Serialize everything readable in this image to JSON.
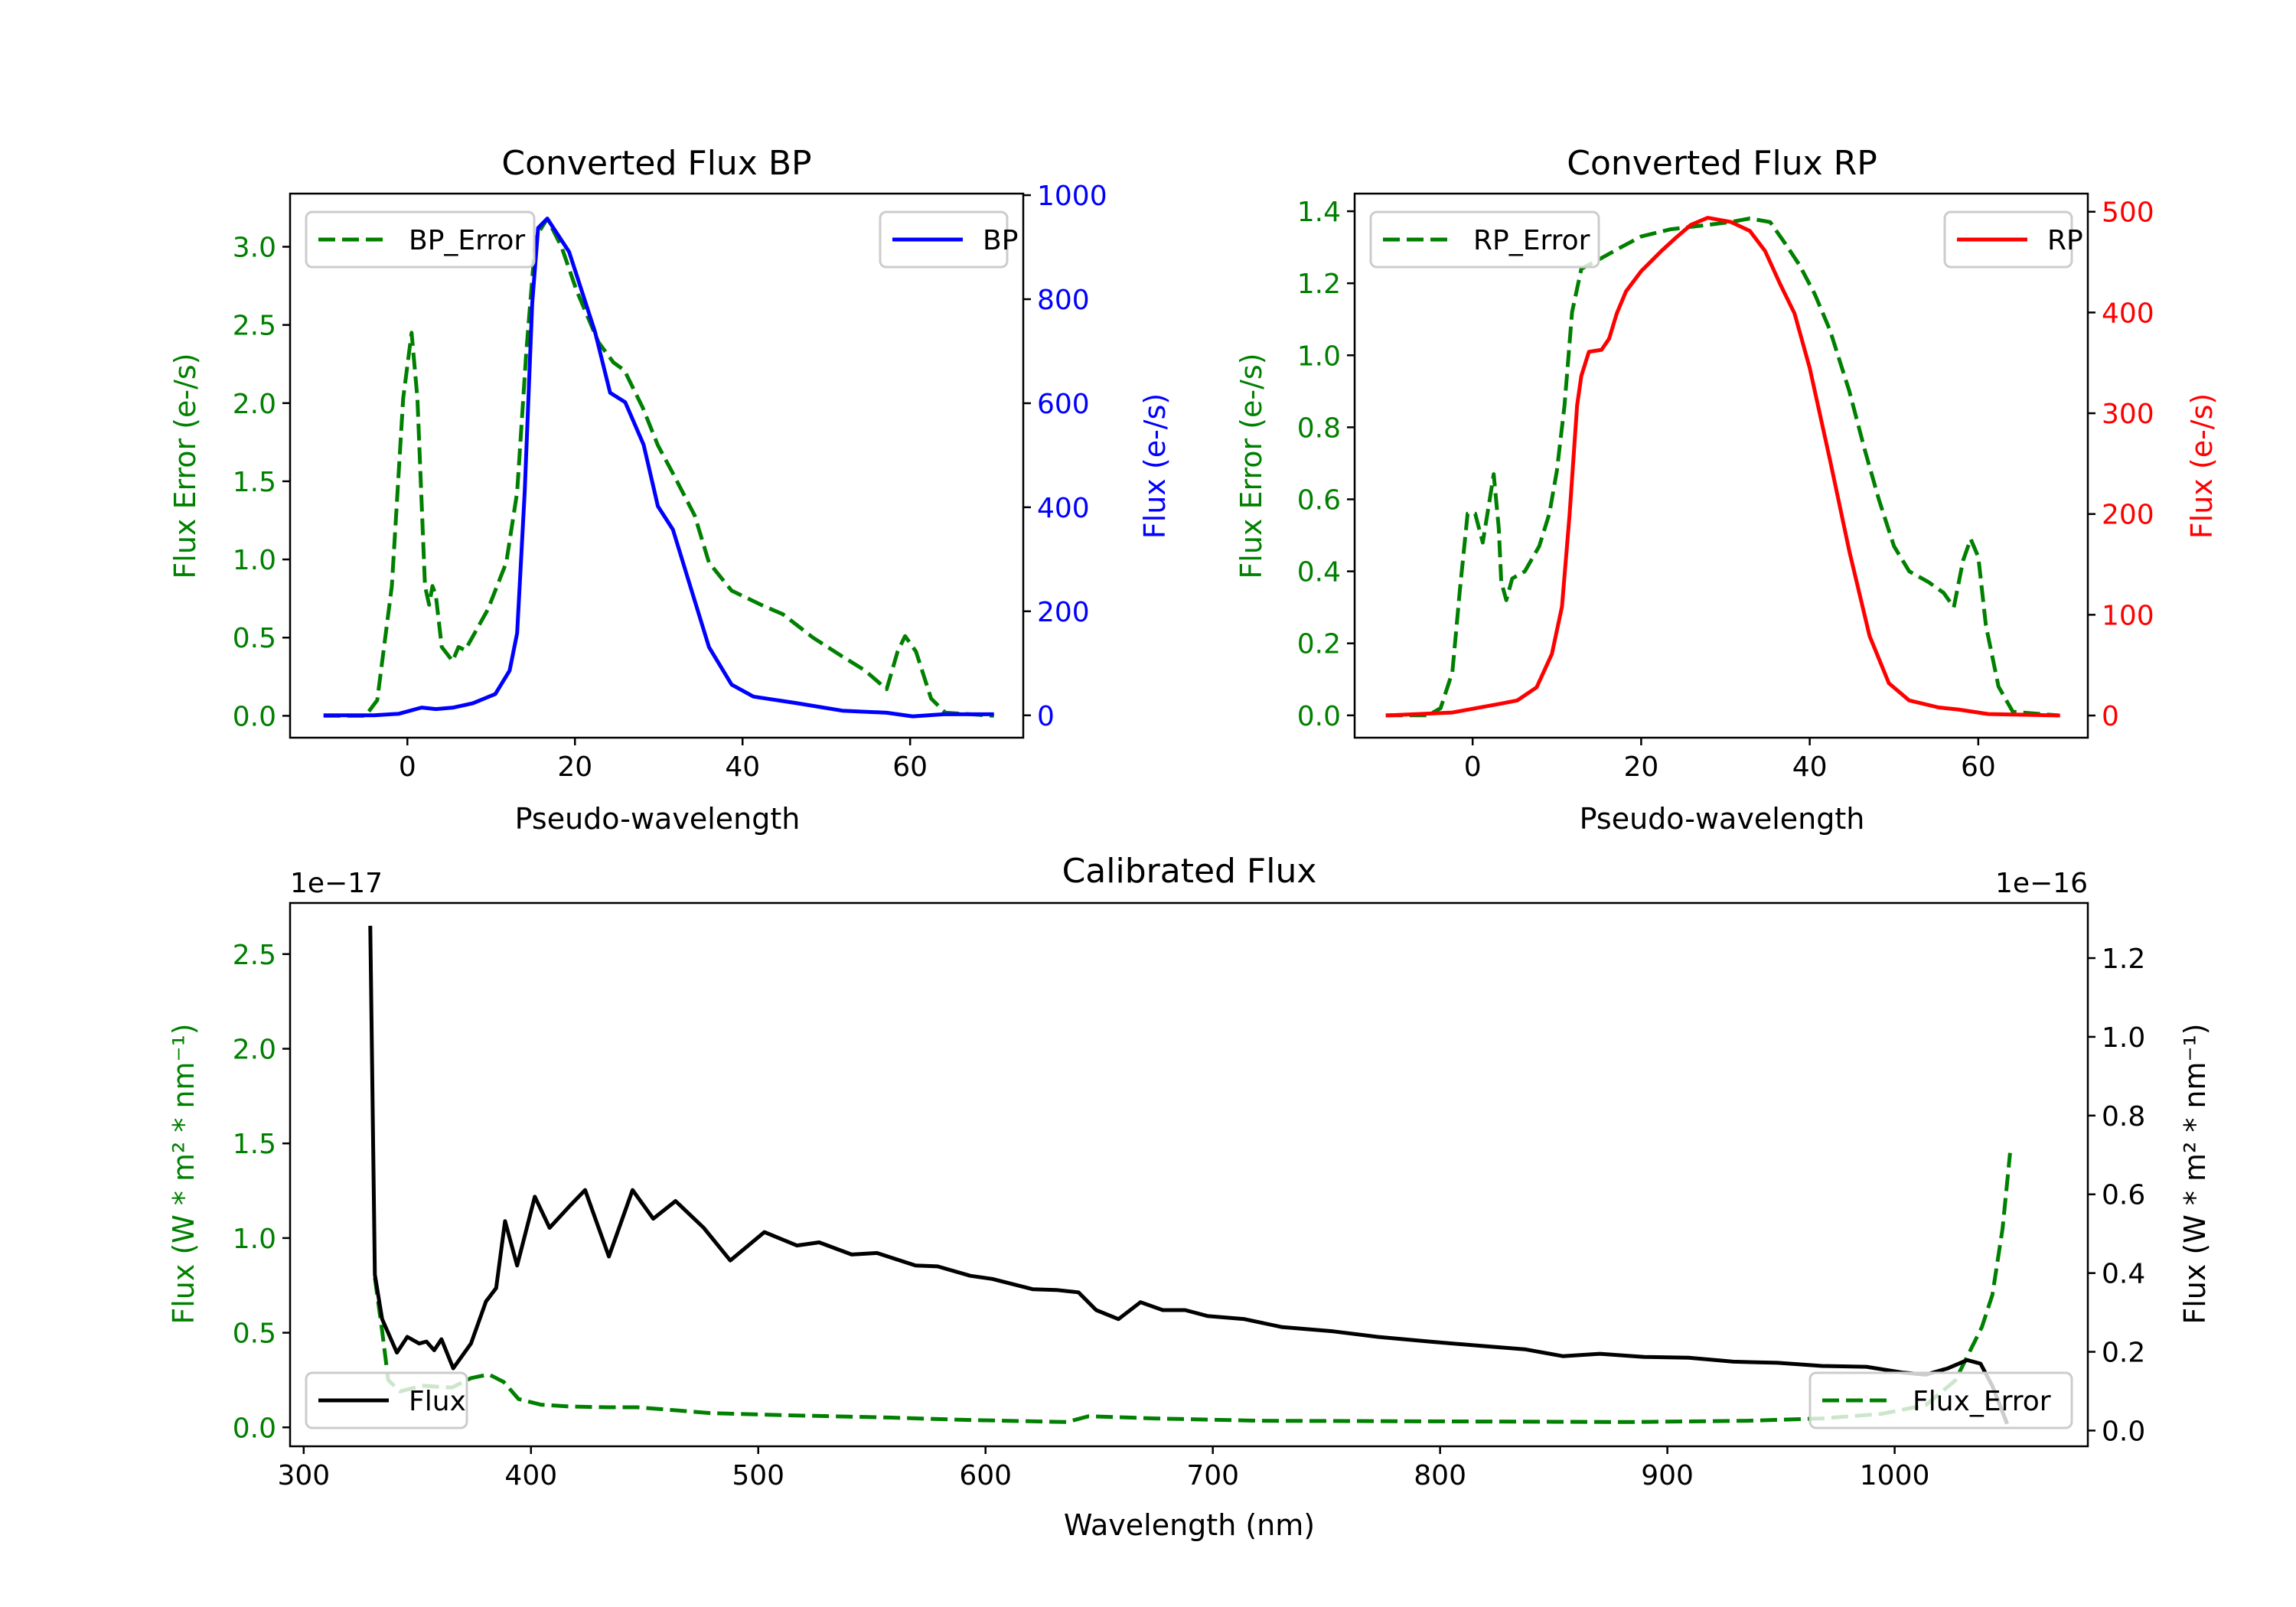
{
  "chart_data": [
    {
      "id": "bp",
      "type": "line",
      "title": "Converted Flux BP",
      "xlabel": "Pseudo-wavelength",
      "ylabel_left": "Flux Error (e-/s)",
      "ylabel_right": "Flux (e-/s)",
      "left_color": "#008000",
      "right_color": "#0000ff",
      "xlim": [
        -14,
        73.5
      ],
      "ylim_left": [
        -0.14,
        3.34
      ],
      "ylim_right": [
        -43,
        1003
      ],
      "xticks": [
        0,
        20,
        40,
        60
      ],
      "xtick_labels": [
        "0",
        "20",
        "40",
        "60"
      ],
      "yticks_left": [
        0,
        0.5,
        1,
        1.5,
        2,
        2.5,
        3
      ],
      "ytick_labels_left": [
        "0.0",
        "0.5",
        "1.0",
        "1.5",
        "2.0",
        "2.5",
        "3.0"
      ],
      "yticks_right": [
        0,
        200,
        400,
        600,
        800,
        1000
      ],
      "ytick_labels_right": [
        "0",
        "200",
        "400",
        "600",
        "800",
        "1000"
      ],
      "legend_left": {
        "label": "BP_Error",
        "placement": "upper-left"
      },
      "legend_right": {
        "label": "BP",
        "placement": "upper-right"
      },
      "series": [
        {
          "name": "BP_Error",
          "axis": "left",
          "color": "#008000",
          "style": "dashed",
          "x": [
            -10,
            -5,
            -3.6,
            -1.85,
            -0.5,
            0.5,
            1.2,
            2.1,
            2.6,
            3,
            3.4,
            4.1,
            5.4,
            6.1,
            6.9,
            9.6,
            11.8,
            13.1,
            14.2,
            15.3,
            16.7,
            18.4,
            20.2,
            22.8,
            24.6,
            25.9,
            28.1,
            29.9,
            31.7,
            34.3,
            36,
            38.7,
            42.2,
            44.8,
            48.4,
            51.9,
            54.6,
            57.2,
            58.5,
            59.4,
            60.7,
            62.5,
            64.2,
            70
          ],
          "y": [
            0,
            0,
            0.1,
            0.83,
            2.03,
            2.45,
            2.03,
            0.83,
            0.71,
            0.83,
            0.77,
            0.44,
            0.35,
            0.44,
            0.42,
            0.68,
            0.98,
            1.43,
            2.33,
            3.06,
            3.18,
            3.0,
            2.72,
            2.39,
            2.26,
            2.21,
            1.97,
            1.73,
            1.55,
            1.28,
            0.98,
            0.8,
            0.71,
            0.65,
            0.5,
            0.38,
            0.29,
            0.17,
            0.41,
            0.51,
            0.41,
            0.11,
            0.02,
            0
          ]
        },
        {
          "name": "BP",
          "axis": "right",
          "color": "#0000ff",
          "style": "solid",
          "x": [
            -10,
            -4,
            -1,
            1.7,
            3.4,
            5.5,
            7.8,
            10.5,
            12.2,
            13.1,
            14,
            14.9,
            15.6,
            16.7,
            19.3,
            22.4,
            24.2,
            26,
            28.2,
            29.9,
            31.7,
            33.4,
            36,
            38.7,
            41.3,
            46.6,
            51.9,
            57.2,
            60.3,
            64,
            70
          ],
          "y": [
            0,
            0,
            3,
            15,
            12,
            15,
            23,
            41,
            86,
            158,
            430,
            792,
            937,
            955,
            891,
            737,
            620,
            602,
            520,
            402,
            357,
            267,
            131,
            59,
            36,
            23,
            9,
            5,
            -2,
            2,
            2
          ]
        }
      ]
    },
    {
      "id": "rp",
      "type": "line",
      "title": "Converted Flux RP",
      "xlabel": "Pseudo-wavelength",
      "ylabel_left": "Flux Error (e-/s)",
      "ylabel_right": "Flux (e-/s)",
      "left_color": "#008000",
      "right_color": "#ff0000",
      "xlim": [
        -14,
        73
      ],
      "ylim_left": [
        -0.062,
        1.449
      ],
      "ylim_right": [
        -22,
        518
      ],
      "xticks": [
        0,
        20,
        40,
        60
      ],
      "xtick_labels": [
        "0",
        "20",
        "40",
        "60"
      ],
      "yticks_left": [
        0,
        0.2,
        0.4,
        0.6,
        0.8,
        1.0,
        1.2,
        1.4
      ],
      "ytick_labels_left": [
        "0.0",
        "0.2",
        "0.4",
        "0.6",
        "0.8",
        "1.0",
        "1.2",
        "1.4"
      ],
      "yticks_right": [
        0,
        100,
        200,
        300,
        400,
        500
      ],
      "ytick_labels_right": [
        "0",
        "100",
        "200",
        "300",
        "400",
        "500"
      ],
      "legend_left": {
        "label": "RP_Error",
        "placement": "upper-left"
      },
      "legend_right": {
        "label": "RP",
        "placement": "upper-right"
      },
      "series": [
        {
          "name": "RP_Error",
          "axis": "left",
          "color": "#008000",
          "style": "dashed",
          "x": [
            -10.3,
            -5.3,
            -3.8,
            -2.4,
            -1.5,
            -0.6,
            0.3,
            1.2,
            2.1,
            2.5,
            3.1,
            3.4,
            4,
            4.7,
            6.2,
            7.9,
            9.1,
            10,
            10.9,
            11.8,
            12.9,
            15.3,
            17.6,
            20,
            23.5,
            27.1,
            30.6,
            32.9,
            35.3,
            37.1,
            38.8,
            40.6,
            42.4,
            44.7,
            46.5,
            48.2,
            50,
            51.8,
            54.1,
            55.9,
            57.1,
            58.2,
            59.1,
            60,
            60.9,
            62.4,
            64.1,
            69.4
          ],
          "y": [
            0,
            0,
            0.02,
            0.12,
            0.35,
            0.56,
            0.56,
            0.48,
            0.61,
            0.67,
            0.52,
            0.37,
            0.32,
            0.38,
            0.4,
            0.47,
            0.56,
            0.68,
            0.86,
            1.12,
            1.24,
            1.27,
            1.3,
            1.33,
            1.35,
            1.36,
            1.37,
            1.38,
            1.37,
            1.31,
            1.25,
            1.17,
            1.07,
            0.9,
            0.74,
            0.6,
            0.47,
            0.4,
            0.37,
            0.34,
            0.3,
            0.43,
            0.49,
            0.44,
            0.25,
            0.08,
            0.01,
            0
          ]
        },
        {
          "name": "RP",
          "axis": "right",
          "color": "#ff0000",
          "style": "solid",
          "x": [
            -10.3,
            -2.4,
            3.5,
            5.3,
            7.6,
            9.4,
            10.6,
            11.5,
            12.4,
            12.9,
            13.8,
            15.3,
            16.2,
            17.1,
            18.2,
            20,
            22.4,
            24.1,
            25.9,
            27.9,
            30.6,
            32.9,
            34.7,
            36.5,
            38.2,
            40,
            42.4,
            44.7,
            47.1,
            49.4,
            51.8,
            55.3,
            57.6,
            61.2,
            69.7
          ],
          "y": [
            0,
            3,
            12,
            15,
            28,
            61,
            108,
            199,
            308,
            337,
            361,
            363,
            374,
            399,
            421,
            441,
            461,
            474,
            487,
            494,
            490,
            481,
            461,
            428,
            399,
            345,
            254,
            163,
            79,
            32,
            15,
            8,
            6,
            1.5,
            0
          ]
        }
      ]
    },
    {
      "id": "cal",
      "type": "line",
      "title": "Calibrated Flux",
      "xlabel": "Wavelength (nm)",
      "ylabel_left": "Flux (W * m² * nm⁻¹)",
      "ylabel_right": "Flux (W * m² * nm⁻¹)",
      "left_color": "#008000",
      "right_color": "#000000",
      "offset_left": "1e−17",
      "offset_right": "1e−16",
      "xlim": [
        294,
        1085
      ],
      "ylim_left": [
        -0.1,
        2.77
      ],
      "ylim_right": [
        -0.04,
        1.34
      ],
      "xticks": [
        300,
        400,
        500,
        600,
        700,
        800,
        900,
        1000
      ],
      "xtick_labels": [
        "300",
        "400",
        "500",
        "600",
        "700",
        "800",
        "900",
        "1000"
      ],
      "yticks_left": [
        0,
        0.5,
        1,
        1.5,
        2,
        2.5
      ],
      "ytick_labels_left": [
        "0.0",
        "0.5",
        "1.0",
        "1.5",
        "2.0",
        "2.5"
      ],
      "yticks_right": [
        0,
        0.2,
        0.4,
        0.6,
        0.8,
        1.0,
        1.2
      ],
      "ytick_labels_right": [
        "0.0",
        "0.2",
        "0.4",
        "0.6",
        "0.8",
        "1.0",
        "1.2"
      ],
      "legend_left": {
        "label": "Flux",
        "placement": "lower-left"
      },
      "legend_right": {
        "label": "Flux_Error",
        "placement": "lower-right"
      },
      "series": [
        {
          "name": "Flux_Error",
          "axis": "left",
          "color": "#008000",
          "style": "dashed",
          "x": [
            331.3,
            334.5,
            337.2,
            342.4,
            352.1,
            365.2,
            373.6,
            381.5,
            388,
            394.5,
            404.3,
            417.3,
            433.6,
            446.6,
            459.7,
            479.2,
            511.8,
            557.4,
            590,
            635.7,
            645.4,
            674.7,
            720.4,
            818.1,
            883.3,
            935.4,
            968,
            994.1,
            1013.7,
            1026.7,
            1038.4,
            1043,
            1047.5,
            1050.8
          ],
          "y": [
            0.79,
            0.51,
            0.25,
            0.19,
            0.22,
            0.21,
            0.26,
            0.28,
            0.24,
            0.15,
            0.12,
            0.11,
            0.106,
            0.106,
            0.094,
            0.075,
            0.064,
            0.052,
            0.04,
            0.028,
            0.059,
            0.047,
            0.035,
            0.031,
            0.028,
            0.035,
            0.047,
            0.071,
            0.118,
            0.248,
            0.53,
            0.7,
            1.05,
            1.45
          ]
        },
        {
          "name": "Flux",
          "axis": "right",
          "color": "#000000",
          "style": "solid",
          "x": [
            329.3,
            331.3,
            334.5,
            341,
            345.6,
            350.8,
            354,
            357.4,
            360.6,
            365.8,
            373.6,
            380.2,
            384.7,
            388.6,
            393.9,
            401.7,
            408.2,
            417.3,
            423.8,
            434.3,
            444.7,
            453.8,
            463.6,
            476,
            487.7,
            502.7,
            517,
            526.8,
            541.1,
            552.2,
            569.2,
            578.9,
            593.3,
            603,
            620.7,
            631.1,
            640.9,
            648.7,
            658.5,
            668.2,
            678,
            687.8,
            697.6,
            713.9,
            730.2,
            753,
            772.5,
            795.3,
            818.1,
            837.7,
            854,
            870.3,
            889.8,
            909.4,
            929,
            948.5,
            968,
            987.6,
            1003.9,
            1013.7,
            1023.4,
            1031.9,
            1037.8,
            1043,
            1049.5
          ],
          "y": [
            1.282,
            0.396,
            0.283,
            0.198,
            0.238,
            0.221,
            0.226,
            0.204,
            0.232,
            0.158,
            0.221,
            0.328,
            0.362,
            0.532,
            0.419,
            0.594,
            0.515,
            0.572,
            0.611,
            0.442,
            0.611,
            0.538,
            0.583,
            0.515,
            0.432,
            0.504,
            0.47,
            0.478,
            0.447,
            0.451,
            0.419,
            0.417,
            0.393,
            0.385,
            0.359,
            0.357,
            0.351,
            0.306,
            0.283,
            0.326,
            0.306,
            0.306,
            0.291,
            0.283,
            0.263,
            0.252,
            0.238,
            0.226,
            0.215,
            0.206,
            0.189,
            0.195,
            0.187,
            0.185,
            0.175,
            0.172,
            0.164,
            0.162,
            0.147,
            0.142,
            0.158,
            0.179,
            0.17,
            0.113,
            0.017
          ]
        }
      ]
    }
  ]
}
